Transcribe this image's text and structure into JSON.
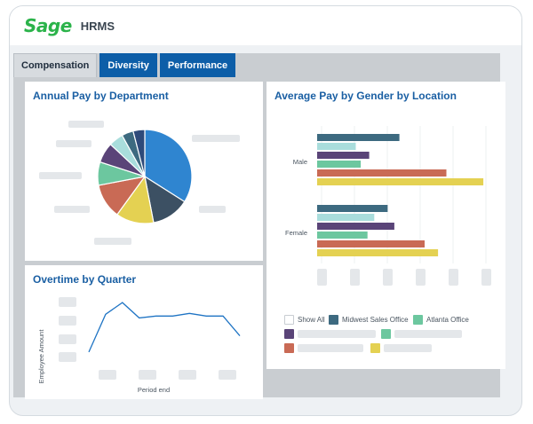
{
  "header": {
    "logo": "Sage",
    "title": "HRMS"
  },
  "tabs": [
    {
      "label": "Compensation",
      "active": true
    },
    {
      "label": "Diversity",
      "active": false
    },
    {
      "label": "Performance",
      "active": false
    }
  ],
  "cards": {
    "pie": {
      "title": "Annual Pay by Department"
    },
    "overtime": {
      "title": "Overtime by Quarter",
      "ylabel": "Employee Amount",
      "xlabel": "Period end"
    },
    "gender": {
      "title": "Average Pay by Gender by Location"
    }
  },
  "legend": {
    "show_all": "Show All",
    "midwest": "Midwest Sales Office",
    "atlanta": "Atlanta Office"
  },
  "colors": {
    "c1": "#2f85d0",
    "c2": "#3c5063",
    "c3": "#e4d152",
    "c4": "#c96a55",
    "c5": "#6cc79f",
    "c6": "#5a4478",
    "c7": "#a9dddc",
    "c8": "#3d6a80",
    "c9": "#2e4a7a"
  },
  "chart_data": [
    {
      "type": "pie",
      "title": "Annual Pay by Department",
      "values": [
        34,
        13,
        13,
        12,
        8,
        7,
        5,
        4,
        4
      ],
      "colors": [
        "#2f85d0",
        "#3c5063",
        "#e4d152",
        "#c96a55",
        "#6cc79f",
        "#5a4478",
        "#a9dddc",
        "#3d6a80",
        "#2e4a7a"
      ]
    },
    {
      "type": "line",
      "title": "Overtime by Quarter",
      "xlabel": "Period end",
      "ylabel": "Employee Amount",
      "values": [
        10,
        52,
        65,
        48,
        50,
        50,
        53,
        50,
        50,
        28
      ],
      "ylim": [
        0,
        75
      ]
    },
    {
      "type": "bar",
      "title": "Average Pay by Gender by Location",
      "categories": [
        "Male",
        "Female"
      ],
      "series": [
        {
          "color": "#3d6a80",
          "values": [
            49,
            42
          ]
        },
        {
          "color": "#a9dddc",
          "values": [
            23,
            34
          ]
        },
        {
          "color": "#5a4478",
          "values": [
            31,
            46
          ]
        },
        {
          "color": "#6cc79f",
          "values": [
            26,
            30
          ]
        },
        {
          "color": "#c96a55",
          "values": [
            77,
            64
          ]
        },
        {
          "color": "#e4d152",
          "values": [
            99,
            72
          ]
        }
      ],
      "xlim": [
        0,
        100
      ]
    }
  ]
}
